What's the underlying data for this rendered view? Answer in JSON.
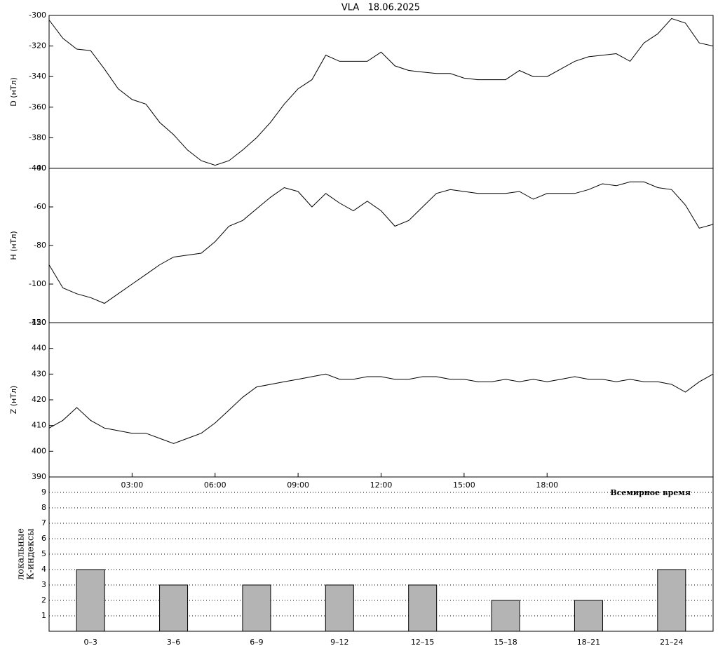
{
  "chart_data": [
    {
      "type": "line",
      "title": "VLA   18.06.2025",
      "ylabel": "D (нТл)",
      "color": "#000000",
      "x": [
        0,
        0.5,
        1,
        1.5,
        2,
        2.5,
        3,
        3.5,
        4,
        4.5,
        5,
        5.5,
        6,
        6.5,
        7,
        7.5,
        8,
        8.5,
        9,
        9.5,
        10,
        10.5,
        11,
        11.5,
        12,
        12.5,
        13,
        13.5,
        14,
        14.5,
        15,
        15.5,
        16,
        16.5,
        17,
        17.5,
        18,
        18.5,
        19,
        19.5,
        20,
        20.5,
        21,
        21.5,
        22,
        22.5,
        23,
        23.5,
        24
      ],
      "values": [
        -303,
        -315,
        -322,
        -323,
        -335,
        -348,
        -355,
        -358,
        -370,
        -378,
        -388,
        -395,
        -398,
        -395,
        -388,
        -380,
        -370,
        -358,
        -348,
        -342,
        -326,
        -330,
        -330,
        -330,
        -324,
        -333,
        -336,
        -337,
        -338,
        -338,
        -341,
        -342,
        -342,
        -342,
        -336,
        -340,
        -340,
        -335,
        -330,
        -327,
        -326,
        -325,
        -330,
        -318,
        -312,
        -302,
        -305,
        -318,
        -320
      ],
      "xlim": [
        0,
        24
      ],
      "ylim": [
        -400,
        -300
      ],
      "yticks": [
        -400,
        -380,
        -360,
        -340,
        -320,
        -300
      ]
    },
    {
      "type": "line",
      "ylabel": "H (нТл)",
      "color": "#000000",
      "x": [
        0,
        0.5,
        1,
        1.5,
        2,
        2.5,
        3,
        3.5,
        4,
        4.5,
        5,
        5.5,
        6,
        6.5,
        7,
        7.5,
        8,
        8.5,
        9,
        9.5,
        10,
        10.5,
        11,
        11.5,
        12,
        12.5,
        13,
        13.5,
        14,
        14.5,
        15,
        15.5,
        16,
        16.5,
        17,
        17.5,
        18,
        18.5,
        19,
        19.5,
        20,
        20.5,
        21,
        21.5,
        22,
        22.5,
        23,
        23.5,
        24
      ],
      "values": [
        -90,
        -102,
        -105,
        -107,
        -110,
        -105,
        -100,
        -95,
        -90,
        -86,
        -85,
        -84,
        -78,
        -70,
        -67,
        -61,
        -55,
        -50,
        -52,
        -60,
        -53,
        -58,
        -62,
        -57,
        -62,
        -70,
        -67,
        -60,
        -53,
        -51,
        -52,
        -53,
        -53,
        -53,
        -52,
        -56,
        -53,
        -53,
        -53,
        -51,
        -48,
        -49,
        -47,
        -47,
        -50,
        -51,
        -59,
        -71,
        -69
      ],
      "xlim": [
        0,
        24
      ],
      "ylim": [
        -120,
        -40
      ],
      "yticks": [
        -120,
        -100,
        -80,
        -60,
        -40
      ]
    },
    {
      "type": "line",
      "ylabel": "Z (нТл)",
      "xlabel": "Всемирное время",
      "color": "#000000",
      "x": [
        0,
        0.5,
        1,
        1.5,
        2,
        2.5,
        3,
        3.5,
        4,
        4.5,
        5,
        5.5,
        6,
        6.5,
        7,
        7.5,
        8,
        8.5,
        9,
        9.5,
        10,
        10.5,
        11,
        11.5,
        12,
        12.5,
        13,
        13.5,
        14,
        14.5,
        15,
        15.5,
        16,
        16.5,
        17,
        17.5,
        18,
        18.5,
        19,
        19.5,
        20,
        20.5,
        21,
        21.5,
        22,
        22.5,
        23,
        23.5,
        24
      ],
      "values": [
        409,
        412,
        417,
        412,
        409,
        408,
        407,
        407,
        405,
        403,
        405,
        407,
        411,
        416,
        421,
        425,
        426,
        427,
        428,
        429,
        430,
        428,
        428,
        429,
        429,
        428,
        428,
        429,
        429,
        428,
        428,
        427,
        427,
        428,
        427,
        428,
        427,
        428,
        429,
        428,
        428,
        427,
        428,
        427,
        427,
        426,
        423,
        427,
        430
      ],
      "xlim": [
        0,
        24
      ],
      "ylim": [
        390,
        450
      ],
      "yticks": [
        390,
        400,
        410,
        420,
        430,
        440,
        450
      ],
      "xticks": [
        {
          "value": 3,
          "label": "03:00"
        },
        {
          "value": 6,
          "label": "06:00"
        },
        {
          "value": 9,
          "label": "09:00"
        },
        {
          "value": 12,
          "label": "12:00"
        },
        {
          "value": 15,
          "label": "15:00"
        },
        {
          "value": 18,
          "label": "18:00"
        }
      ]
    },
    {
      "type": "bar",
      "ylabel": [
        "К-индексы",
        "локальные"
      ],
      "color": "#b4b4b4",
      "grid": true,
      "categories": [
        "0–3",
        "3–6",
        "6–9",
        "9–12",
        "12–15",
        "15–18",
        "18–21",
        "21–24"
      ],
      "values": [
        4,
        3,
        3,
        3,
        3,
        2,
        2,
        4
      ],
      "ylim": [
        0,
        10
      ],
      "yticks": [
        1,
        2,
        3,
        4,
        5,
        6,
        7,
        8,
        9
      ]
    }
  ]
}
